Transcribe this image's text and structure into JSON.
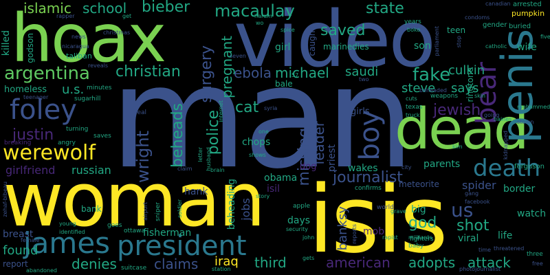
{
  "words": [
    {
      "text": "man",
      "color": "#3b528b"
    },
    {
      "text": "woman",
      "color": "#fde725"
    },
    {
      "text": "isis",
      "color": "#fde725"
    },
    {
      "text": "hoax",
      "color": "#7ad151"
    },
    {
      "text": "video",
      "color": "#3b528b"
    },
    {
      "text": "dead",
      "color": "#7ad151"
    },
    {
      "text": "penis",
      "color": "#2a788e"
    },
    {
      "text": "james",
      "color": "#2a788e"
    },
    {
      "text": "president",
      "color": "#2a788e"
    },
    {
      "text": "foley",
      "color": "#3b528b"
    },
    {
      "text": "argentina",
      "color": "#5ec962"
    },
    {
      "text": "werewolf",
      "color": "#fde725"
    },
    {
      "text": "christian",
      "color": "#22a884"
    },
    {
      "text": "bear",
      "color": "#482878"
    },
    {
      "text": "boy",
      "color": "#3b528b"
    },
    {
      "text": "death",
      "color": "#2a788e"
    },
    {
      "text": "islamic",
      "color": "#7ad151"
    },
    {
      "text": "school",
      "color": "#22a884"
    },
    {
      "text": "bieber",
      "color": "#22a884"
    },
    {
      "text": "macaulay",
      "color": "#22a884"
    },
    {
      "text": "state",
      "color": "#22a884"
    },
    {
      "text": "saved",
      "color": "#22a884"
    },
    {
      "text": "ebola",
      "color": "#3b528b"
    },
    {
      "text": "michael",
      "color": "#22a884"
    },
    {
      "text": "saudi",
      "color": "#22a884"
    },
    {
      "text": "fake",
      "color": "#22a884"
    },
    {
      "text": "culkin",
      "color": "#22a884"
    },
    {
      "text": "steve",
      "color": "#22a884"
    },
    {
      "text": "says",
      "color": "#22a884"
    },
    {
      "text": "surgery",
      "color": "#3b528b"
    },
    {
      "text": "pregnant",
      "color": "#22a884"
    },
    {
      "text": "jewish",
      "color": "#482878"
    },
    {
      "text": "justin",
      "color": "#482878"
    },
    {
      "text": "cat",
      "color": "#22a884"
    },
    {
      "text": "wright",
      "color": "#3b528b"
    },
    {
      "text": "beheads",
      "color": "#22a884"
    },
    {
      "text": "police",
      "color": "#22a884"
    },
    {
      "text": "missing",
      "color": "#3b528b"
    },
    {
      "text": "leader",
      "color": "#3b528b"
    },
    {
      "text": "journalist",
      "color": "#3b528b"
    },
    {
      "text": "shot",
      "color": "#22a884"
    },
    {
      "text": "us",
      "color": "#3b528b"
    },
    {
      "text": "god",
      "color": "#22a884"
    },
    {
      "text": "banksy",
      "color": "#3b528b"
    },
    {
      "text": "iraq",
      "color": "#fde725"
    },
    {
      "text": "third",
      "color": "#22a884"
    },
    {
      "text": "claims",
      "color": "#3b528b"
    },
    {
      "text": "denies",
      "color": "#22a884"
    },
    {
      "text": "found",
      "color": "#22a884"
    },
    {
      "text": "american",
      "color": "#482878"
    },
    {
      "text": "adopts",
      "color": "#22a884"
    },
    {
      "text": "attack",
      "color": "#22a884"
    },
    {
      "text": "u.s.",
      "color": "#22a884"
    },
    {
      "text": "homeless",
      "color": "#22a884"
    },
    {
      "text": "girlfriend",
      "color": "#482878"
    },
    {
      "text": "russian",
      "color": "#22a884"
    },
    {
      "text": "fisherman",
      "color": "#22a884"
    },
    {
      "text": "obama",
      "color": "#22a884"
    },
    {
      "text": "spider",
      "color": "#3b528b"
    },
    {
      "text": "border",
      "color": "#22a884"
    },
    {
      "text": "parents",
      "color": "#22a884"
    },
    {
      "text": "wakes",
      "color": "#22a884"
    },
    {
      "text": "jobs",
      "color": "#3b528b"
    },
    {
      "text": "days",
      "color": "#22a884"
    },
    {
      "text": "beheading",
      "color": "#22a884"
    },
    {
      "text": "hank",
      "color": "#3b528b"
    },
    {
      "text": "mob",
      "color": "#482878"
    },
    {
      "text": "watch",
      "color": "#22a884"
    },
    {
      "text": "life",
      "color": "#22a884"
    },
    {
      "text": "viral",
      "color": "#22a884"
    },
    {
      "text": "big",
      "color": "#22a884"
    },
    {
      "text": "chops",
      "color": "#22a884"
    },
    {
      "text": "priest",
      "color": "#3b528b"
    },
    {
      "text": "dog",
      "color": "#482878"
    },
    {
      "text": "girls",
      "color": "#3b528b"
    },
    {
      "text": "ringtone",
      "color": "#22a884"
    },
    {
      "text": "killed",
      "color": "#22a884"
    },
    {
      "text": "godson",
      "color": "#22a884"
    },
    {
      "text": "teen",
      "color": "#22a884"
    },
    {
      "text": "wife",
      "color": "#22a884"
    },
    {
      "text": "son",
      "color": "#22a884"
    },
    {
      "text": "girl",
      "color": "#22a884"
    },
    {
      "text": "marine",
      "color": "#22a884"
    },
    {
      "text": "caught",
      "color": "#3b528b"
    },
    {
      "text": "dies",
      "color": "#22a884"
    },
    {
      "text": "bale",
      "color": "#22a884"
    },
    {
      "text": "meteorite",
      "color": "#3b528b"
    },
    {
      "text": "bank",
      "color": "#22a884"
    },
    {
      "text": "breast",
      "color": "#3b528b"
    },
    {
      "text": "report",
      "color": "#3b528b"
    },
    {
      "text": "isil",
      "color": "#482878"
    },
    {
      "text": "ferguson",
      "color": "#22a884"
    },
    {
      "text": "taliban",
      "color": "#22a884"
    },
    {
      "text": "sugarhill",
      "color": "#22a884"
    },
    {
      "text": "minutes",
      "color": "#22a884"
    },
    {
      "text": "angry",
      "color": "#22a884"
    },
    {
      "text": "saves",
      "color": "#22a884"
    },
    {
      "text": "breaking",
      "color": "#482878"
    },
    {
      "text": "turning",
      "color": "#22a884"
    },
    {
      "text": "teenager",
      "color": "#3b528b"
    },
    {
      "text": "christmas",
      "color": "#3b528b"
    },
    {
      "text": "news",
      "color": "#3b528b"
    },
    {
      "text": "nicaragua",
      "color": "#3b528b"
    },
    {
      "text": "rapper",
      "color": "#3b528b"
    },
    {
      "text": "reveals",
      "color": "#3b528b"
    },
    {
      "text": "get",
      "color": "#22a884"
    },
    {
      "text": "haram",
      "color": "#22a884"
    },
    {
      "text": "wo",
      "color": "#22a884"
    },
    {
      "text": "years",
      "color": "#22a884"
    },
    {
      "text": "boko",
      "color": "#22a884"
    },
    {
      "text": "condoms",
      "color": "#3b528b"
    },
    {
      "text": "arrested",
      "color": "#22a884"
    },
    {
      "text": "canadian",
      "color": "#3b528b"
    },
    {
      "text": "pumpkin",
      "color": "#fde725"
    },
    {
      "text": "gender",
      "color": "#22a884"
    },
    {
      "text": "buried",
      "color": "#22a884"
    },
    {
      "text": "catholic",
      "color": "#22a884"
    },
    {
      "text": "five",
      "color": "#22a884"
    },
    {
      "text": "parliament",
      "color": "#3b528b"
    },
    {
      "text": "stop",
      "color": "#3b528b"
    },
    {
      "text": "skin",
      "color": "#22a884"
    },
    {
      "text": "mohammed",
      "color": "#22a884"
    },
    {
      "text": "truck",
      "color": "#22a884"
    },
    {
      "text": "texas",
      "color": "#22a884"
    },
    {
      "text": "weapons",
      "color": "#22a884"
    },
    {
      "text": "cuts",
      "color": "#22a884"
    },
    {
      "text": "haines",
      "color": "#22a884"
    },
    {
      "text": "stolen",
      "color": "#3b528b"
    },
    {
      "text": "going",
      "color": "#3b528b"
    },
    {
      "text": "kim",
      "color": "#22a884"
    },
    {
      "text": "kidnapped",
      "color": "#3b528b"
    },
    {
      "text": "gang",
      "color": "#3b528b"
    },
    {
      "text": "facebook",
      "color": "#3b528b"
    },
    {
      "text": "grave",
      "color": "#22a884"
    },
    {
      "text": "world",
      "color": "#3b528b"
    },
    {
      "text": "apple",
      "color": "#22a884"
    },
    {
      "text": "confirms",
      "color": "#22a884"
    },
    {
      "text": "rapist",
      "color": "#22a884"
    },
    {
      "text": "militants",
      "color": "#22a884"
    },
    {
      "text": "fighters",
      "color": "#22a884"
    },
    {
      "text": "baby",
      "color": "#22a884"
    },
    {
      "text": "time",
      "color": "#3b528b"
    },
    {
      "text": "threatened",
      "color": "#3b528b"
    },
    {
      "text": "three",
      "color": "#22a884"
    },
    {
      "text": "free",
      "color": "#3b528b"
    },
    {
      "text": "photojournalist",
      "color": "#3b528b"
    },
    {
      "text": "gets",
      "color": "#22a884"
    },
    {
      "text": "station",
      "color": "#22a884"
    },
    {
      "text": "suitcase",
      "color": "#22a884"
    },
    {
      "text": "abandoned",
      "color": "#22a884"
    },
    {
      "text": "female",
      "color": "#3b528b"
    },
    {
      "text": "young",
      "color": "#22a884"
    },
    {
      "text": "identified",
      "color": "#22a884"
    },
    {
      "text": "goes",
      "color": "#22a884"
    },
    {
      "text": "ottawa",
      "color": "#22a884"
    },
    {
      "text": "security",
      "color": "#22a884"
    },
    {
      "text": "john",
      "color": "#22a884"
    },
    {
      "text": "sniper",
      "color": "#22a884"
    },
    {
      "text": "soldier",
      "color": "#22a884"
    },
    {
      "text": "airport",
      "color": "#3b528b"
    },
    {
      "text": "zehaf-bibeau",
      "color": "#3b528b"
    },
    {
      "text": "brain",
      "color": "#22a884"
    },
    {
      "text": "story",
      "color": "#22a884"
    },
    {
      "text": "letter",
      "color": "#22a884"
    },
    {
      "text": "husband",
      "color": "#22a884"
    },
    {
      "text": "internet",
      "color": "#22a884"
    },
    {
      "text": "claim",
      "color": "#3b528b"
    },
    {
      "text": "shows",
      "color": "#22a884"
    },
    {
      "text": "syria",
      "color": "#3b528b"
    },
    {
      "text": "one",
      "color": "#22a884"
    },
    {
      "text": "real",
      "color": "#3b528b"
    },
    {
      "text": "spice",
      "color": "#22a884"
    },
    {
      "text": "seven",
      "color": "#3b528b"
    },
    {
      "text": "57",
      "color": "#22a884"
    },
    {
      "text": "two",
      "color": "#3b528b"
    },
    {
      "text": "city",
      "color": "#3b528b"
    },
    {
      "text": "reports",
      "color": "#3b528b"
    },
    {
      "text": "beheaded",
      "color": "#3b528b"
    }
  ]
}
